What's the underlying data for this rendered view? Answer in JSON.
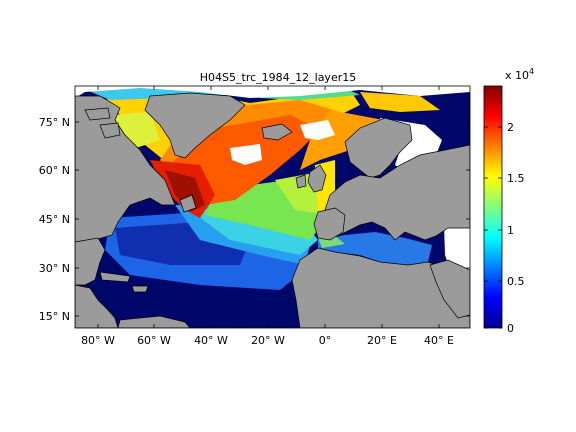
{
  "title": "H04S5_trc_1984_12_layer15",
  "map": {
    "lon_ticks": [
      "80° W",
      "60° W",
      "40° W",
      "20° W",
      "0°",
      "20° E",
      "40° E"
    ],
    "lat_ticks": [
      "75° N",
      "60° N",
      "45° N",
      "30° N",
      "15° N"
    ],
    "land_color": "#9b9b9b",
    "no_data_color": "#ffffff"
  },
  "colorbar": {
    "exponent_label": "x 10",
    "exponent_power": "4",
    "ticks": [
      "2",
      "1.5",
      "1",
      "0.5",
      "0"
    ],
    "range": [
      0,
      2.35
    ]
  },
  "chart_data": {
    "type": "heatmap",
    "title": "H04S5_trc_1984_12_layer15",
    "xlabel": "",
    "ylabel": "",
    "x_ticks": [
      "80° W",
      "60° W",
      "40° W",
      "20° W",
      "0°",
      "20° E",
      "40° E"
    ],
    "y_ticks": [
      "75° N",
      "60° N",
      "45° N",
      "30° N",
      "15° N"
    ],
    "colorbar_scale": "x 10^4",
    "colorbar_ticks": [
      0,
      0.5,
      1,
      1.5,
      2
    ],
    "value_range": [
      0,
      23500
    ],
    "colormap": "jet"
  }
}
